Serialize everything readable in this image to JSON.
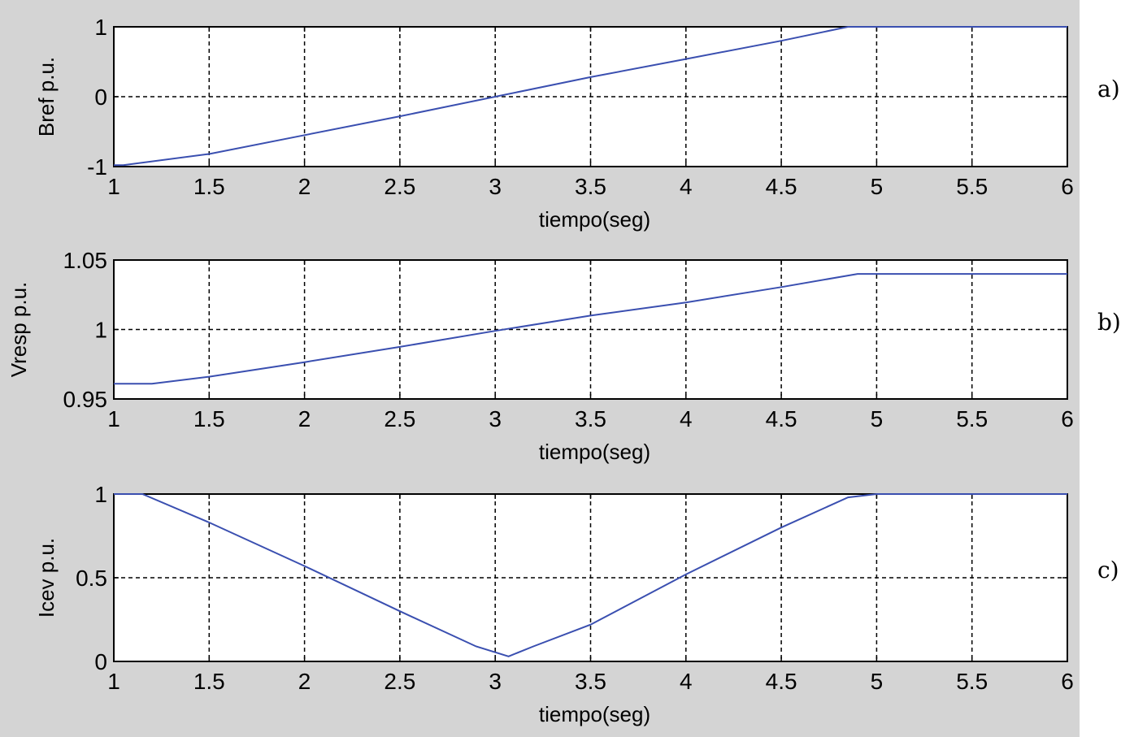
{
  "panel_tags": [
    "a)",
    "b)",
    "c)"
  ],
  "chart_data": [
    {
      "type": "line",
      "xlabel": "tiempo(seg)",
      "ylabel": "Bref p.u.",
      "xlim": [
        1,
        6
      ],
      "ylim": [
        -1,
        1
      ],
      "xticks": [
        "1",
        "1.5",
        "2",
        "2.5",
        "3",
        "3.5",
        "4",
        "4.5",
        "5",
        "5.5",
        "6"
      ],
      "yticks": [
        "-1",
        "0",
        "1"
      ],
      "grid": true,
      "color": "#3a4fb0",
      "series": [
        {
          "x": [
            1.0,
            1.05,
            1.5,
            2.0,
            2.5,
            3.0,
            3.5,
            4.0,
            4.5,
            4.85,
            5.0,
            6.0
          ],
          "y": [
            -0.98,
            -0.98,
            -0.82,
            -0.55,
            -0.28,
            0.0,
            0.28,
            0.54,
            0.8,
            1.0,
            1.0,
            1.0
          ]
        }
      ]
    },
    {
      "type": "line",
      "xlabel": "tiempo(seg)",
      "ylabel": "Vresp p.u.",
      "xlim": [
        1,
        6
      ],
      "ylim": [
        0.95,
        1.05
      ],
      "xticks": [
        "1",
        "1.5",
        "2",
        "2.5",
        "3",
        "3.5",
        "4",
        "4.5",
        "5",
        "5.5",
        "6"
      ],
      "yticks": [
        "0.95",
        "1",
        "1.05"
      ],
      "grid": true,
      "color": "#3a4fb0",
      "series": [
        {
          "x": [
            1.0,
            1.2,
            1.5,
            2.0,
            2.5,
            3.0,
            3.5,
            4.0,
            4.5,
            4.9,
            5.0,
            6.0
          ],
          "y": [
            0.961,
            0.961,
            0.966,
            0.9765,
            0.9875,
            0.999,
            1.01,
            1.0195,
            1.0305,
            1.04,
            1.04,
            1.04
          ]
        }
      ]
    },
    {
      "type": "line",
      "xlabel": "tiempo(seg)",
      "ylabel": "Icev p.u.",
      "xlim": [
        1,
        6
      ],
      "ylim": [
        0,
        1
      ],
      "xticks": [
        "1",
        "1.5",
        "2",
        "2.5",
        "3",
        "3.5",
        "4",
        "4.5",
        "5",
        "5.5",
        "6"
      ],
      "yticks": [
        "0",
        "0.5",
        "1"
      ],
      "grid": true,
      "color": "#3a4fb0",
      "series": [
        {
          "x": [
            1.0,
            1.15,
            1.5,
            2.0,
            2.5,
            2.9,
            3.07,
            3.2,
            3.5,
            4.0,
            4.5,
            4.85,
            5.0,
            6.0
          ],
          "y": [
            1.0,
            1.0,
            0.83,
            0.57,
            0.3,
            0.09,
            0.03,
            0.09,
            0.22,
            0.52,
            0.8,
            0.98,
            1.0,
            1.0
          ]
        }
      ]
    }
  ]
}
